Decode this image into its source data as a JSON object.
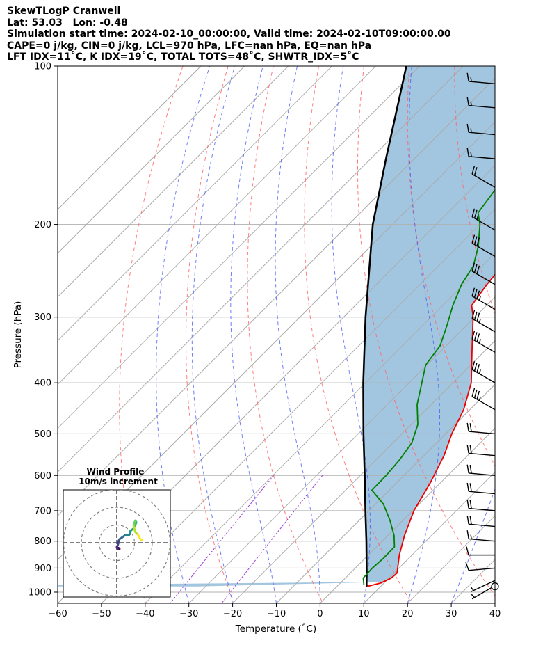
{
  "header": {
    "line1": "SkewTLogP Cranwell",
    "line2": "Lat: 53.03   Lon: -0.48",
    "line3": "Simulation start time: 2024-02-10_00:00:00, Valid time: 2024-02-10T09:00:00.00",
    "line4": "CAPE=0 j/kg, CIN=0 j/kg, LCL=970 hPa, LFC=nan hPa, EQ=nan hPa",
    "line5": "LFT IDX=11˚C, K IDX=19˚C, TOTAL TOTS=48˚C, SHWTR_IDX=5˚C"
  },
  "chart_data": {
    "type": "skewt",
    "xlabel": "Temperature (˚C)",
    "ylabel": "Pressure (hPa)",
    "xlim": [
      -60,
      40
    ],
    "ylim": [
      1050,
      100
    ],
    "x_ticks": [
      -60,
      -50,
      -40,
      -30,
      -20,
      -10,
      0,
      10,
      20,
      30,
      40
    ],
    "x_tick_labels": [
      "−60",
      "−50",
      "−40",
      "−30",
      "−20",
      "−10",
      "0",
      "10",
      "20",
      "30",
      "40"
    ],
    "y_ticks": [
      1000,
      900,
      800,
      700,
      600,
      500,
      400,
      300,
      200,
      100
    ],
    "y_scale": "log",
    "skew": 45,
    "grid": true,
    "colors": {
      "temperature": "#ee0000",
      "dewpoint": "#008000",
      "parcel": "#000000",
      "shading": "#a2c6e0",
      "isotherm": "#aaaaaa",
      "dry_adiabat": "#ff6666",
      "moist_adiabat": "#4a5cf5",
      "mixing_ratio": "#9a3fd0"
    },
    "temperature": [
      {
        "p": 975,
        "t": 6.9
      },
      {
        "p": 960,
        "t": 9.3
      },
      {
        "p": 940,
        "t": 10.5
      },
      {
        "p": 920,
        "t": 10.7
      },
      {
        "p": 850,
        "t": 7.1
      },
      {
        "p": 780,
        "t": 3.8
      },
      {
        "p": 700,
        "t": 0.3
      },
      {
        "p": 620,
        "t": -2.3
      },
      {
        "p": 550,
        "t": -5.4
      },
      {
        "p": 500,
        "t": -8.6
      },
      {
        "p": 450,
        "t": -11.4
      },
      {
        "p": 400,
        "t": -15.8
      },
      {
        "p": 350,
        "t": -22.6
      },
      {
        "p": 300,
        "t": -30.4
      },
      {
        "p": 285,
        "t": -33.4
      },
      {
        "p": 260,
        "t": -34.7
      },
      {
        "p": 240,
        "t": -35.4
      },
      {
        "p": 220,
        "t": -35.3
      },
      {
        "p": 200,
        "t": -34.1
      },
      {
        "p": 180,
        "t": -33.1
      },
      {
        "p": 160,
        "t": -32.6
      },
      {
        "p": 150,
        "t": -33.0
      },
      {
        "p": 140,
        "t": -32.6
      },
      {
        "p": 130,
        "t": -32.4
      },
      {
        "p": 125,
        "t": -31.6
      },
      {
        "p": 115,
        "t": -32.9
      },
      {
        "p": 100,
        "t": -31.9
      }
    ],
    "dewpoint": [
      {
        "p": 970,
        "t": 5.9
      },
      {
        "p": 940,
        "t": 4.1
      },
      {
        "p": 900,
        "t": 3.9
      },
      {
        "p": 860,
        "t": 4.2
      },
      {
        "p": 820,
        "t": 4.1
      },
      {
        "p": 780,
        "t": 1.4
      },
      {
        "p": 730,
        "t": -3.0
      },
      {
        "p": 680,
        "t": -8.2
      },
      {
        "p": 640,
        "t": -14.0
      },
      {
        "p": 600,
        "t": -14.1
      },
      {
        "p": 560,
        "t": -14.6
      },
      {
        "p": 520,
        "t": -15.7
      },
      {
        "p": 480,
        "t": -18.5
      },
      {
        "p": 440,
        "t": -23.2
      },
      {
        "p": 400,
        "t": -27.1
      },
      {
        "p": 370,
        "t": -30.3
      },
      {
        "p": 340,
        "t": -31.4
      },
      {
        "p": 310,
        "t": -34.6
      },
      {
        "p": 285,
        "t": -37.7
      },
      {
        "p": 260,
        "t": -40.5
      },
      {
        "p": 240,
        "t": -42.0
      },
      {
        "p": 220,
        "t": -45.4
      },
      {
        "p": 200,
        "t": -50.0
      },
      {
        "p": 190,
        "t": -53.1
      },
      {
        "p": 170,
        "t": -54.6
      },
      {
        "p": 150,
        "t": -54.3
      },
      {
        "p": 130,
        "t": -52.8
      },
      {
        "p": 115,
        "t": -53.3
      },
      {
        "p": 100,
        "t": -53.7
      }
    ],
    "parcel": [
      {
        "p": 975,
        "t": 6.9
      },
      {
        "p": 970,
        "t": 6.5
      },
      {
        "p": 900,
        "t": 2.6
      },
      {
        "p": 800,
        "t": -3.6
      },
      {
        "p": 700,
        "t": -10.8
      },
      {
        "p": 600,
        "t": -19.0
      },
      {
        "p": 500,
        "t": -28.8
      },
      {
        "p": 400,
        "t": -40.5
      },
      {
        "p": 300,
        "t": -55.0
      },
      {
        "p": 200,
        "t": -74.5
      },
      {
        "p": 150,
        "t": -86.5
      },
      {
        "p": 100,
        "t": -103.0
      }
    ],
    "dry_adiabats_theta_k": [
      230,
      250,
      270,
      290,
      310,
      330,
      350,
      370,
      390,
      410,
      430,
      450,
      470
    ],
    "moist_adiabats_start_c": [
      -30,
      -20,
      -10,
      0,
      10,
      20,
      30,
      40,
      50
    ],
    "mixing_ratio_lines": [
      0.2,
      0.6
    ],
    "wind_barbs": [
      {
        "p": 972,
        "speed_kt": 5,
        "dir_deg": 240
      },
      {
        "p": 950,
        "speed_kt": 5,
        "dir_deg": 245
      },
      {
        "p": 900,
        "speed_kt": 10,
        "dir_deg": 265
      },
      {
        "p": 850,
        "speed_kt": 10,
        "dir_deg": 270
      },
      {
        "p": 800,
        "speed_kt": 15,
        "dir_deg": 275
      },
      {
        "p": 750,
        "speed_kt": 20,
        "dir_deg": 275
      },
      {
        "p": 700,
        "speed_kt": 20,
        "dir_deg": 275
      },
      {
        "p": 650,
        "speed_kt": 20,
        "dir_deg": 275
      },
      {
        "p": 600,
        "speed_kt": 20,
        "dir_deg": 275
      },
      {
        "p": 550,
        "speed_kt": 20,
        "dir_deg": 275
      },
      {
        "p": 500,
        "speed_kt": 20,
        "dir_deg": 275
      },
      {
        "p": 450,
        "speed_kt": 35,
        "dir_deg": 300
      },
      {
        "p": 400,
        "speed_kt": 35,
        "dir_deg": 300
      },
      {
        "p": 350,
        "speed_kt": 35,
        "dir_deg": 300
      },
      {
        "p": 320,
        "speed_kt": 35,
        "dir_deg": 300
      },
      {
        "p": 290,
        "speed_kt": 35,
        "dir_deg": 300
      },
      {
        "p": 260,
        "speed_kt": 30,
        "dir_deg": 300
      },
      {
        "p": 230,
        "speed_kt": 30,
        "dir_deg": 300
      },
      {
        "p": 205,
        "speed_kt": 25,
        "dir_deg": 300
      },
      {
        "p": 170,
        "speed_kt": 20,
        "dir_deg": 300
      },
      {
        "p": 150,
        "speed_kt": 15,
        "dir_deg": 275
      },
      {
        "p": 135,
        "speed_kt": 15,
        "dir_deg": 275
      },
      {
        "p": 120,
        "speed_kt": 15,
        "dir_deg": 275
      },
      {
        "p": 108,
        "speed_kt": 15,
        "dir_deg": 275
      }
    ],
    "hodograph": {
      "title_line1": "Wind Profile",
      "title_line2": "10m/s increment",
      "rings_ms": [
        10,
        20,
        30
      ],
      "trace_uv_ms": [
        [
          1,
          -6
        ],
        [
          2,
          -6
        ],
        [
          3,
          -7
        ],
        [
          1,
          -7
        ],
        [
          0,
          -5
        ],
        [
          1,
          -3
        ],
        [
          2,
          0
        ],
        [
          2,
          2
        ],
        [
          3,
          4
        ],
        [
          6,
          6
        ],
        [
          10,
          9
        ],
        [
          14,
          9
        ],
        [
          15,
          10
        ],
        [
          15,
          12
        ],
        [
          16,
          14
        ],
        [
          19,
          16
        ],
        [
          21,
          20
        ],
        [
          22,
          23
        ],
        [
          21,
          25
        ],
        [
          20,
          23
        ],
        [
          19,
          19
        ],
        [
          20,
          15
        ],
        [
          21,
          12
        ],
        [
          24,
          9
        ],
        [
          26,
          5
        ],
        [
          28,
          3
        ]
      ]
    }
  }
}
